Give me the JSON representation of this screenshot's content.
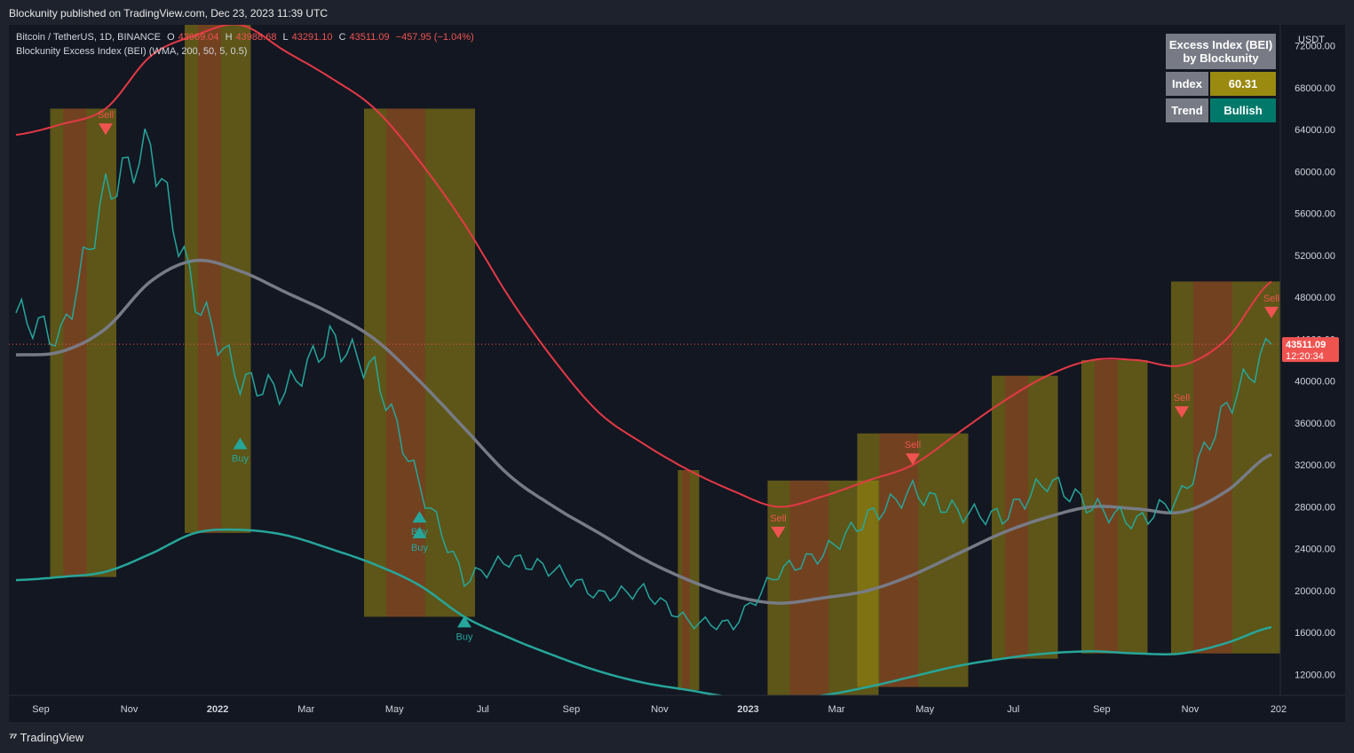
{
  "header": {
    "published": "Blockunity published on TradingView.com, Dec 23, 2023 11:39 UTC"
  },
  "legend": {
    "symbol": "Bitcoin / TetherUS, 1D, BINANCE",
    "o_label": "O",
    "o": "43969.04",
    "h_label": "H",
    "h": "43988.68",
    "l_label": "L",
    "l": "43291.10",
    "c_label": "C",
    "c": "43511.09",
    "change": "−457.95 (−1.04%)",
    "indicator": "Blockunity Excess Index (BEI) (WMA, 200, 50, 5, 0.5)"
  },
  "table": {
    "title_line1": "Excess Index (BEI)",
    "title_line2": "by Blockunity",
    "index_label": "Index",
    "index_value": "60.31",
    "trend_label": "Trend",
    "trend_value": "Bullish",
    "colors": {
      "header_bg": "#787b86",
      "index_bg": "#9a8a10",
      "trend_bg": "#00796b"
    }
  },
  "price_axis": {
    "currency": "USDT",
    "ticks": [
      "72000.00",
      "68000.00",
      "64000.00",
      "60000.00",
      "56000.00",
      "52000.00",
      "48000.00",
      "44000.00",
      "40000.00",
      "36000.00",
      "32000.00",
      "28000.00",
      "24000.00",
      "20000.00",
      "16000.00",
      "12000.00"
    ],
    "last_price": "43511.09",
    "countdown": "12:20:34"
  },
  "time_axis": {
    "ticks": [
      "Sep",
      "Nov",
      "2022",
      "Mar",
      "May",
      "Jul",
      "Sep",
      "Nov",
      "2023",
      "Mar",
      "May",
      "Jul",
      "Sep",
      "Nov",
      "202"
    ],
    "bold_ticks": [
      "2022",
      "2023"
    ]
  },
  "footer": {
    "brand": "TradingView"
  },
  "chart_data": {
    "type": "line",
    "title": "Bitcoin / TetherUS, 1D, BINANCE",
    "x_unit": "month",
    "x": [
      "2021-08",
      "2021-09",
      "2021-10",
      "2021-11",
      "2021-12",
      "2022-01",
      "2022-02",
      "2022-03",
      "2022-04",
      "2022-05",
      "2022-06",
      "2022-07",
      "2022-08",
      "2022-09",
      "2022-10",
      "2022-11",
      "2022-12",
      "2023-01",
      "2023-02",
      "2023-03",
      "2023-04",
      "2023-05",
      "2023-06",
      "2023-07",
      "2023-08",
      "2023-09",
      "2023-10",
      "2023-11",
      "2023-12"
    ],
    "ylim": [
      10000,
      74000
    ],
    "series": [
      {
        "name": "",
        "role": "price",
        "color": "#26a69a",
        "values": [
          46500,
          44000,
          58000,
          62500,
          48000,
          40000,
          39000,
          44000,
          41000,
          30000,
          21000,
          23000,
          22000,
          19500,
          20000,
          17000,
          16700,
          21800,
          23500,
          27000,
          29500,
          27500,
          27000,
          30500,
          28000,
          26500,
          29000,
          37500,
          43511
        ]
      },
      {
        "name": "",
        "role": "upper band",
        "color": "#e53946",
        "values": [
          63500,
          64500,
          66000,
          71000,
          73000,
          74000,
          71500,
          69000,
          66000,
          61000,
          55000,
          48000,
          42000,
          37000,
          34000,
          31500,
          29500,
          28000,
          29000,
          30500,
          32000,
          35000,
          38000,
          40500,
          42000,
          42000,
          41500,
          44000,
          49500
        ]
      },
      {
        "name": "",
        "role": "moving average (WMA 200)",
        "color": "#787b86",
        "values": [
          42500,
          42800,
          45000,
          49500,
          51500,
          50500,
          48500,
          46500,
          44000,
          40000,
          35500,
          31000,
          28000,
          25500,
          23000,
          21000,
          19500,
          18800,
          19300,
          20000,
          21500,
          23500,
          25500,
          27000,
          28000,
          27800,
          27500,
          29500,
          33000
        ]
      },
      {
        "name": "",
        "role": "lower band",
        "color": "#26a69a",
        "values": [
          21000,
          21300,
          21800,
          23500,
          25500,
          25800,
          25300,
          24000,
          22500,
          20500,
          17500,
          15500,
          13800,
          12300,
          11200,
          10500,
          9800,
          9600,
          10000,
          10800,
          11800,
          12800,
          13500,
          14000,
          14200,
          14000,
          14000,
          15000,
          16500
        ]
      }
    ],
    "signals": [
      {
        "type": "Sell",
        "x": "2021-10",
        "y": 64000
      },
      {
        "type": "Buy",
        "x": "2022-01",
        "y": 34000
      },
      {
        "type": "Buy",
        "x": "2022-05",
        "y": 27000
      },
      {
        "type": "Buy",
        "x": "2022-05",
        "y": 25500
      },
      {
        "type": "Buy",
        "x": "2022-06",
        "y": 17000
      },
      {
        "type": "Sell",
        "x": "2023-01",
        "y": 25500
      },
      {
        "type": "Sell",
        "x": "2023-04",
        "y": 32500
      },
      {
        "type": "Sell",
        "x": "2023-10",
        "y": 37000
      },
      {
        "type": "Sell",
        "x": "2023-12",
        "y": 46500
      }
    ],
    "excess_zones": [
      [
        "2021-09",
        "2021-10"
      ],
      [
        "2021-12",
        "2022-01"
      ],
      [
        "2022-04",
        "2022-06"
      ],
      [
        "2022-11",
        "2022-11"
      ],
      [
        "2023-01",
        "2023-03"
      ],
      [
        "2023-03",
        "2023-05"
      ],
      [
        "2023-06",
        "2023-07"
      ],
      [
        "2023-08",
        "2023-09"
      ],
      [
        "2023-10",
        "2023-12"
      ]
    ],
    "colors": {
      "sell": "#ef5350",
      "buy": "#26a69a",
      "zone_excess": "#9a8a10",
      "zone_extreme": "#8b2a2a",
      "price_line": "#ef5350"
    },
    "legend": "top-left",
    "grid": false
  }
}
